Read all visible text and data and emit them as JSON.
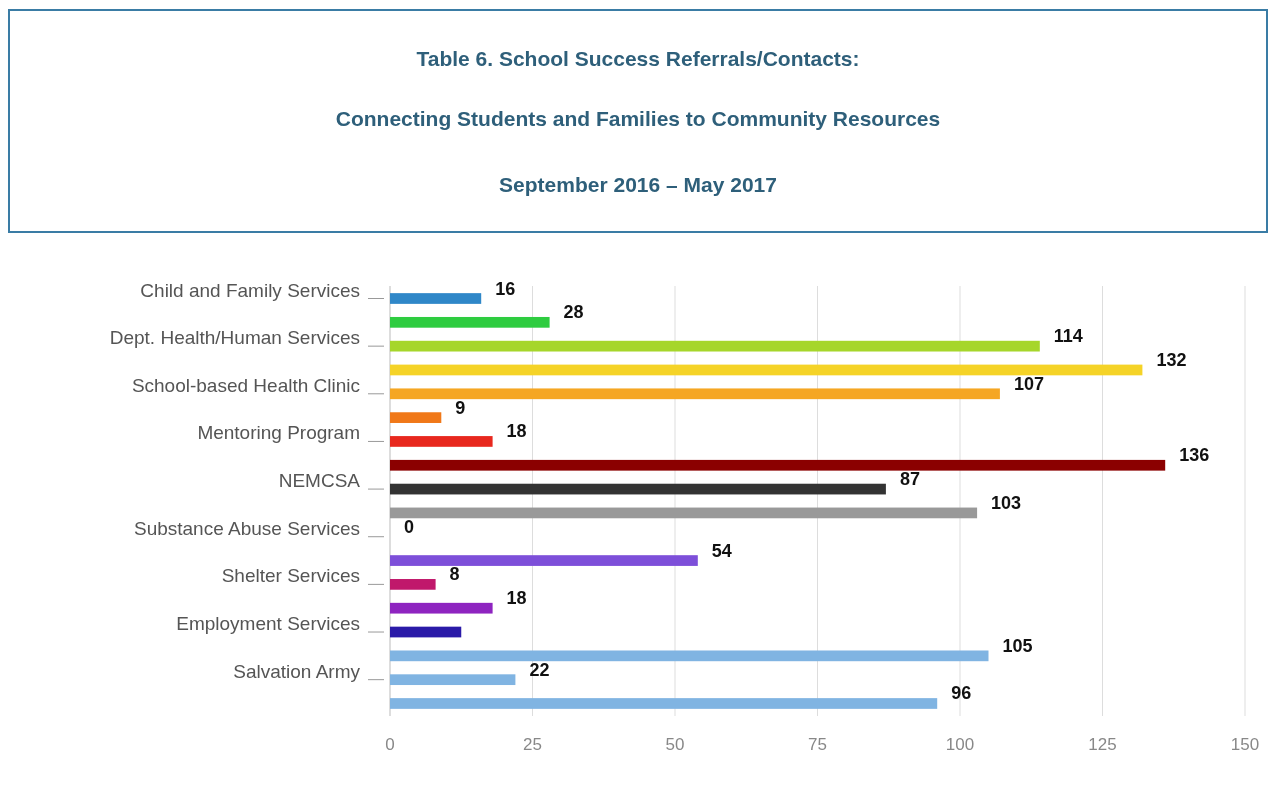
{
  "chart_data": {
    "type": "bar",
    "orientation": "horizontal",
    "title": "Table 6. School Success Referrals/Contacts:",
    "subtitle": "Connecting Students and Families to Community Resources\nSeptember 2016 – May 2017",
    "categories": [
      "Child and Family Services",
      null,
      "Dept. Health/Human Services",
      null,
      "School-based Health Clinic",
      null,
      "Mentoring Program",
      null,
      "NEMCSA",
      null,
      "Substance Abuse Services",
      null,
      "Shelter Services",
      null,
      "Employment Services",
      null,
      "Salvation Army",
      null
    ],
    "values": [
      16,
      28,
      114,
      132,
      107,
      9,
      18,
      136,
      87,
      103,
      0,
      54,
      8,
      18,
      12.5,
      105,
      22,
      96
    ],
    "value_labels": [
      "16",
      "28",
      "114",
      "132",
      "107",
      "9",
      "18",
      "136",
      "87",
      "103",
      "0",
      "54",
      "8",
      "18",
      null,
      "105",
      "22",
      "96"
    ],
    "colors": [
      "#2f87c8",
      "#2ecc40",
      "#a6d62b",
      "#f5d327",
      "#f5a623",
      "#f07818",
      "#e8281e",
      "#8b0000",
      "#333333",
      "#999999",
      "#7d4fd9",
      "#7d4fd9",
      "#c0186b",
      "#8e24c0",
      "#2a1aa8",
      "#80b4e2",
      "#80b4e2",
      "#80b4e2"
    ],
    "xlim": [
      0,
      150
    ],
    "xticks": [
      0,
      25,
      50,
      75,
      100,
      125,
      150
    ],
    "grid": "x"
  }
}
